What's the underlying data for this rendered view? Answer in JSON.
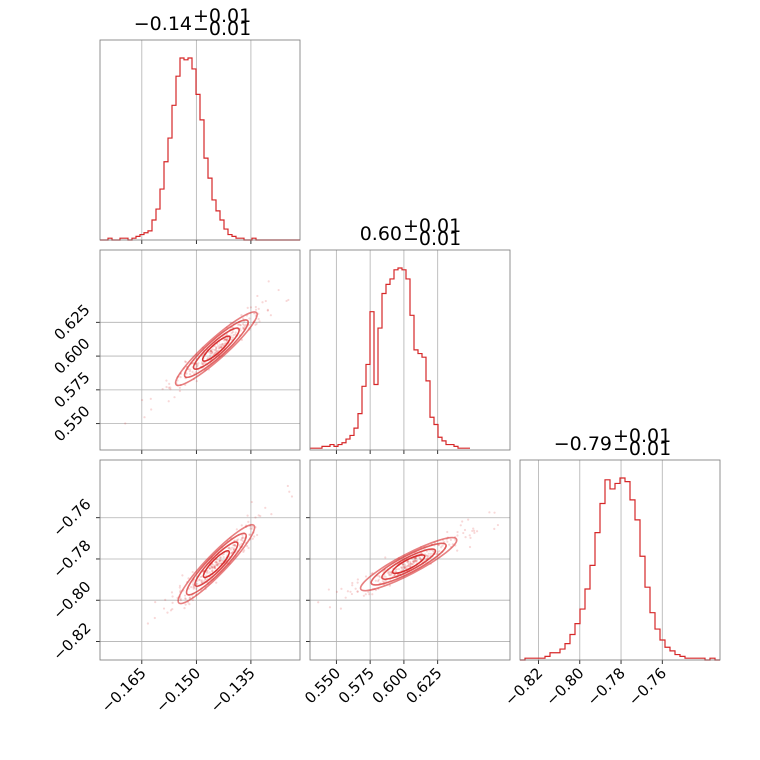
{
  "chart_data": {
    "type": "corner",
    "grid": true,
    "colors": {
      "series": "#d62728",
      "frame": "#777777",
      "grid": "#b0b0b0"
    },
    "parameters": [
      {
        "range": [
          -0.1765,
          -0.1215
        ],
        "ticks": [
          -0.165,
          -0.15,
          -0.135
        ],
        "tick_labels": [
          "−0.165",
          "−0.150",
          "−0.135"
        ]
      },
      {
        "range": [
          0.5305,
          0.6785
        ],
        "ticks": [
          0.55,
          0.575,
          0.6,
          0.625
        ],
        "tick_labels": [
          "0.550",
          "0.575",
          "0.600",
          "0.625"
        ]
      },
      {
        "range": [
          -0.829,
          -0.732
        ],
        "ticks": [
          -0.82,
          -0.8,
          -0.78,
          -0.76
        ],
        "tick_labels": [
          "−0.82",
          "−0.80",
          "−0.78",
          "−0.76"
        ]
      }
    ],
    "titles": [
      {
        "value": "−0.14",
        "plus": "+0.01",
        "minus": "−0.01"
      },
      {
        "value": "0.60",
        "plus": "+0.01",
        "minus": "−0.01"
      },
      {
        "value": "−0.79",
        "plus": "+0.01",
        "minus": "−0.01"
      }
    ],
    "histograms": [
      {
        "bin_start": -0.1765,
        "bin_width": 0.0011,
        "counts": [
          0,
          0,
          1,
          0,
          0,
          1,
          1,
          0,
          1,
          2,
          3,
          4,
          5,
          11,
          17,
          28,
          43,
          56,
          74,
          90,
          100,
          99,
          100,
          94,
          80,
          66,
          45,
          34,
          22,
          16,
          11,
          6,
          3,
          2,
          1,
          1,
          0,
          0,
          1,
          0,
          0,
          0,
          0,
          0,
          0,
          0,
          0,
          0,
          0,
          0
        ]
      },
      {
        "bin_start": 0.5305,
        "bin_width": 0.00296,
        "counts": [
          1,
          1,
          1,
          2,
          2,
          3,
          2,
          3,
          4,
          6,
          8,
          12,
          20,
          35,
          47,
          76,
          36,
          67,
          86,
          91,
          94,
          99,
          100,
          99,
          94,
          74,
          55,
          53,
          51,
          38,
          18,
          14,
          7,
          5,
          3,
          3,
          2,
          1,
          1,
          1
        ]
      },
      {
        "bin_start": -0.829,
        "bin_width": 0.002425,
        "counts": [
          0,
          1,
          1,
          1,
          1,
          2,
          4,
          4,
          6,
          9,
          14,
          20,
          28,
          39,
          52,
          70,
          86,
          99,
          94,
          97,
          100,
          98,
          88,
          77,
          57,
          40,
          26,
          17,
          11,
          7,
          5,
          3,
          2,
          1,
          1,
          1,
          1,
          0,
          1,
          0
        ]
      }
    ],
    "pairs": [
      {
        "x": 0,
        "y": 1,
        "center": [
          -0.1445,
          0.6055
        ],
        "direction": [
          0.3836,
          0.9235
        ]
      },
      {
        "x": 0,
        "y": 2,
        "center": [
          -0.1445,
          -0.7825
        ],
        "direction": [
          0.4806,
          0.8769
        ]
      },
      {
        "x": 1,
        "y": 2,
        "center": [
          0.6035,
          -0.7825
        ],
        "direction": [
          0.9462,
          0.3236
        ]
      }
    ]
  }
}
